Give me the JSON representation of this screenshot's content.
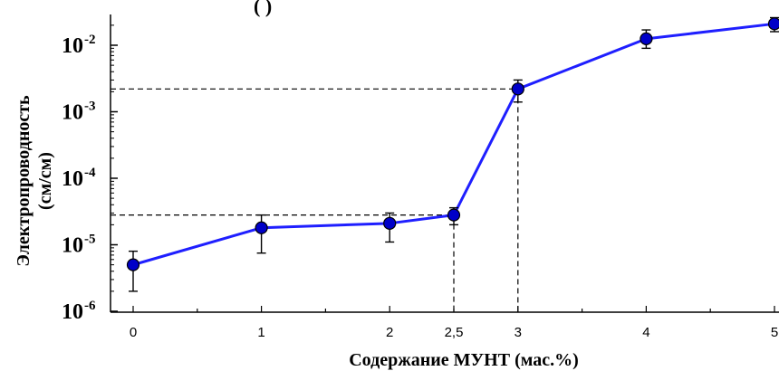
{
  "top_text": "(                              )",
  "chart_data": {
    "type": "line",
    "title": "",
    "xlabel": "Содержание МУНТ (мас.%)",
    "ylabel_line1": "Электропроводность",
    "ylabel_line2": "(см/см)",
    "yscale": "log",
    "xlim": [
      0,
      5
    ],
    "ylim": [
      1e-06,
      0.02
    ],
    "x_ticks": [
      {
        "value": 0,
        "label": "0"
      },
      {
        "value": 1,
        "label": "1"
      },
      {
        "value": 2,
        "label": "2"
      },
      {
        "value": 2.5,
        "label": "2,5"
      },
      {
        "value": 3,
        "label": "3"
      },
      {
        "value": 4,
        "label": "4"
      },
      {
        "value": 5,
        "label": "5"
      }
    ],
    "y_ticks": [
      {
        "value": 1e-06,
        "base": "10",
        "exp": "-6"
      },
      {
        "value": 1e-05,
        "base": "10",
        "exp": "-5"
      },
      {
        "value": 0.0001,
        "base": "10",
        "exp": "-4"
      },
      {
        "value": 0.001,
        "base": "10",
        "exp": "-3"
      },
      {
        "value": 0.01,
        "base": "10",
        "exp": "-2"
      }
    ],
    "series": [
      {
        "line_color": "#1f1fff",
        "marker_color": "#0000c8",
        "points": [
          {
            "x": 0,
            "y": 5e-06,
            "y_low": 2e-06,
            "y_high": 8e-06
          },
          {
            "x": 1,
            "y": 1.8e-05,
            "y_low": 7.5e-06,
            "y_high": 2.8e-05
          },
          {
            "x": 2,
            "y": 2.1e-05,
            "y_low": 1.1e-05,
            "y_high": 3e-05
          },
          {
            "x": 2.5,
            "y": 2.8e-05,
            "y_low": 2e-05,
            "y_high": 3.6e-05
          },
          {
            "x": 3,
            "y": 0.0022,
            "y_low": 0.0014,
            "y_high": 0.003
          },
          {
            "x": 4,
            "y": 0.0125,
            "y_low": 0.009,
            "y_high": 0.017
          },
          {
            "x": 5,
            "y": 0.021,
            "y_low": 0.016,
            "y_high": 0.026
          }
        ]
      }
    ],
    "reference_lines": [
      {
        "x": 2.5,
        "y": 2.8e-05
      },
      {
        "x": 3,
        "y": 0.0022
      }
    ],
    "grid": false,
    "legend": "none"
  }
}
